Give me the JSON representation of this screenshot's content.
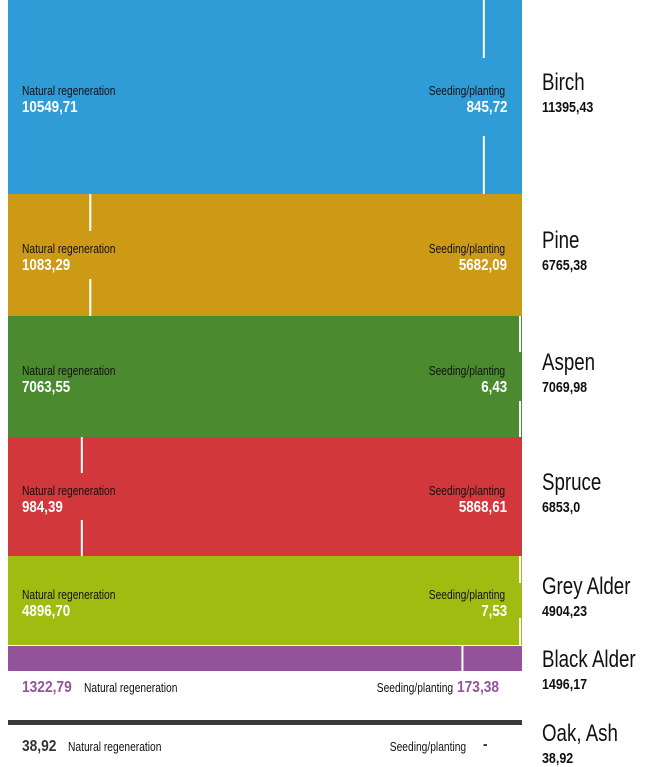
{
  "chart_data": {
    "type": "bar",
    "orientation": "horizontal stacked (100%)",
    "series_labels": {
      "natural": "Natural regeneration",
      "seeding": "Seeding/planting"
    },
    "categories": [
      {
        "name": "Birch",
        "total": 11395.43,
        "total_label": "11395,43",
        "natural": 10549.71,
        "natural_label": "10549,71",
        "seeding": 845.72,
        "seeding_label": "845,72",
        "color": "#2f9bd7"
      },
      {
        "name": "Pine",
        "total": 6765.38,
        "total_label": "6765,38",
        "natural": 1083.29,
        "natural_label": "1083,29",
        "seeding": 5682.09,
        "seeding_label": "5682,09",
        "color": "#cd9a16"
      },
      {
        "name": "Aspen",
        "total": 7069.98,
        "total_label": "7069,98",
        "natural": 7063.55,
        "natural_label": "7063,55",
        "seeding": 6.43,
        "seeding_label": "6,43",
        "color": "#4b8a2e"
      },
      {
        "name": "Spruce",
        "total": 6853.0,
        "total_label": "6853,0",
        "natural": 984.39,
        "natural_label": "984,39",
        "seeding": 5868.61,
        "seeding_label": "5868,61",
        "color": "#d2373c"
      },
      {
        "name": "Grey Alder",
        "total": 4904.23,
        "total_label": "4904,23",
        "natural": 4896.7,
        "natural_label": "4896,70",
        "seeding": 7.53,
        "seeding_label": "7,53",
        "color": "#a0bc10"
      },
      {
        "name": "Black Alder",
        "total": 1496.17,
        "total_label": "1496,17",
        "natural": 1322.79,
        "natural_label": "1322,79",
        "seeding": 173.38,
        "seeding_label": "173,38",
        "color": "#94529a"
      },
      {
        "name": "Oak, Ash",
        "total": 38.92,
        "total_label": "38,92",
        "natural": 38.92,
        "natural_label": "38,92",
        "seeding": 0,
        "seeding_label": "-",
        "color": "#3a3a3a"
      }
    ]
  }
}
